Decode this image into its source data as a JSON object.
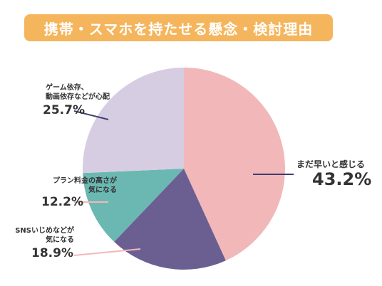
{
  "title": "携帯・スマホを持たせる懸念・検討理由",
  "colors": {
    "title_bg": "#f5b55d",
    "leader": "#3f3f6e"
  },
  "chart_data": {
    "type": "pie",
    "start_angle_deg": 0,
    "direction": "clockwise",
    "slices": [
      {
        "label": "まだ早いと感じる",
        "value": 43.2,
        "pct_text": "43.2%",
        "color": "#f2b8b9"
      },
      {
        "label": "SNSいじめなどが気になる",
        "label_lines": [
          "SNSいじめなどが",
          "気になる"
        ],
        "value": 18.9,
        "pct_text": "18.9%",
        "color": "#6b5f92"
      },
      {
        "label": "プラン料金の高さが気になる",
        "label_lines": [
          "プラン料金の高さが",
          "気になる"
        ],
        "value": 12.2,
        "pct_text": "12.2%",
        "color": "#6bb8b3"
      },
      {
        "label": "ゲーム依存、動画依存などが心配",
        "label_lines": [
          "ゲーム依存、",
          "動画依存などが心配"
        ],
        "value": 25.7,
        "pct_text": "25.7%",
        "color": "#d6cde2"
      }
    ]
  }
}
